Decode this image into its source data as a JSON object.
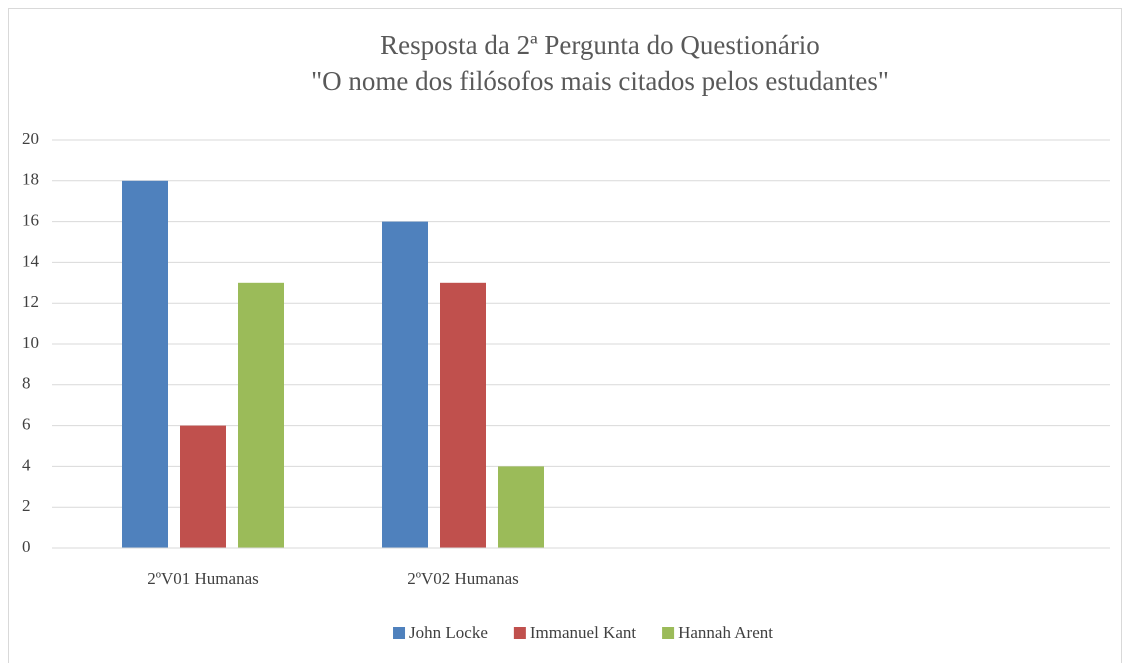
{
  "chart_data": {
    "type": "bar",
    "title": "Resposta da 2ª Pergunta do Questionário",
    "subtitle": "\"O nome dos filósofos mais citados pelos estudantes\"",
    "categories": [
      "2ºV01 Humanas",
      "2ºV02 Humanas",
      null,
      null
    ],
    "series": [
      {
        "name": "John Locke",
        "color": "#4f81bd",
        "values": [
          18,
          16,
          null,
          null
        ]
      },
      {
        "name": "Immanuel Kant",
        "color": "#c0504d",
        "values": [
          6,
          13,
          null,
          null
        ]
      },
      {
        "name": "Hannah Arent",
        "color": "#9bbb59",
        "values": [
          13,
          4,
          null,
          null
        ]
      }
    ],
    "ylim": [
      0,
      20
    ],
    "yticks": [
      0,
      2,
      4,
      6,
      8,
      10,
      12,
      14,
      16,
      18,
      20
    ],
    "grid": true,
    "legend": "bottom"
  }
}
